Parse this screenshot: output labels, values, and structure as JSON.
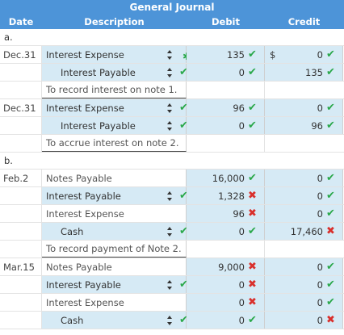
{
  "header": {
    "title": "General Journal",
    "col_date": "Date",
    "col_desc": "Description",
    "col_debit": "Debit",
    "col_credit": "Credit"
  },
  "sections": [
    {
      "label": "a.",
      "groups": [
        {
          "rows": [
            {
              "date": "Dec.31",
              "desc": "Interest Expense",
              "debit": "135",
              "debit_mark": "check",
              "credit": "0",
              "credit_mark": "check",
              "credit_dollar": "$",
              "row_mark": "asterisk",
              "select": true,
              "blue_desc": true,
              "blue_debit": true,
              "blue_credit": true
            },
            {
              "date": "",
              "desc": "Interest Payable",
              "indent": true,
              "debit": "0",
              "debit_mark": "check",
              "credit": "135",
              "credit_mark": "check",
              "row_mark": "check",
              "select": true,
              "blue_desc": true,
              "blue_debit": true,
              "blue_credit": true
            }
          ],
          "note": "To record interest on note 1."
        },
        {
          "rows": [
            {
              "date": "Dec.31",
              "desc": "Interest Expense",
              "debit": "96",
              "debit_mark": "check",
              "credit": "0",
              "credit_mark": "check",
              "row_mark": "check",
              "select": true,
              "blue_desc": true,
              "blue_debit": true,
              "blue_credit": true
            },
            {
              "date": "",
              "desc": "Interest Payable",
              "indent": true,
              "debit": "0",
              "debit_mark": "check",
              "credit": "96",
              "credit_mark": "check",
              "row_mark": "check",
              "select": true,
              "blue_desc": true,
              "blue_debit": true,
              "blue_credit": true
            }
          ],
          "note": "To accrue interest on note 2."
        }
      ]
    },
    {
      "label": "b.",
      "groups": [
        {
          "rows": [
            {
              "date": "Feb.2",
              "desc": "Notes Payable",
              "gray": true,
              "debit": "16,000",
              "debit_mark": "check",
              "credit": "0",
              "credit_mark": "check",
              "row_mark": "",
              "select": false,
              "blue_desc": false,
              "blue_debit": true,
              "blue_credit": true
            },
            {
              "date": "",
              "desc": "Interest Payable",
              "debit": "1,328",
              "debit_mark": "cross",
              "credit": "0",
              "credit_mark": "check",
              "row_mark": "check",
              "select": true,
              "blue_desc": true,
              "blue_debit": true,
              "blue_credit": true
            },
            {
              "date": "",
              "desc": "Interest Expense",
              "gray": true,
              "debit": "96",
              "debit_mark": "cross",
              "credit": "0",
              "credit_mark": "check",
              "row_mark": "",
              "select": false,
              "blue_desc": false,
              "blue_debit": true,
              "blue_credit": true
            },
            {
              "date": "",
              "desc": "Cash",
              "indent": true,
              "debit": "0",
              "debit_mark": "check",
              "credit": "17,460",
              "credit_mark": "cross",
              "row_mark": "check",
              "select": true,
              "blue_desc": true,
              "blue_debit": true,
              "blue_credit": true
            }
          ],
          "note": "To record payment of Note 2."
        },
        {
          "rows": [
            {
              "date": "Mar.15",
              "desc": "Notes Payable",
              "gray": true,
              "debit": "9,000",
              "debit_mark": "cross",
              "credit": "0",
              "credit_mark": "check",
              "row_mark": "",
              "select": false,
              "blue_desc": false,
              "blue_debit": true,
              "blue_credit": true
            },
            {
              "date": "",
              "desc": "Interest Payable",
              "debit": "0",
              "debit_mark": "cross",
              "credit": "0",
              "credit_mark": "check",
              "row_mark": "check",
              "select": true,
              "blue_desc": true,
              "blue_debit": true,
              "blue_credit": true
            },
            {
              "date": "",
              "desc": "Interest Expense",
              "gray": true,
              "debit": "0",
              "debit_mark": "cross",
              "credit": "0",
              "credit_mark": "check",
              "row_mark": "",
              "select": false,
              "blue_desc": false,
              "blue_debit": true,
              "blue_credit": true
            },
            {
              "date": "",
              "desc": "Cash",
              "indent": true,
              "debit": "0",
              "debit_mark": "check",
              "credit": "0",
              "credit_mark": "cross",
              "row_mark": "check",
              "select": true,
              "blue_desc": true,
              "blue_debit": true,
              "blue_credit": true
            }
          ],
          "note": ""
        }
      ]
    }
  ],
  "colors": {
    "header": "#4d94d8",
    "input_fill": "#d6eaf5",
    "correct": "#2aa84a",
    "incorrect": "#d9302c"
  }
}
